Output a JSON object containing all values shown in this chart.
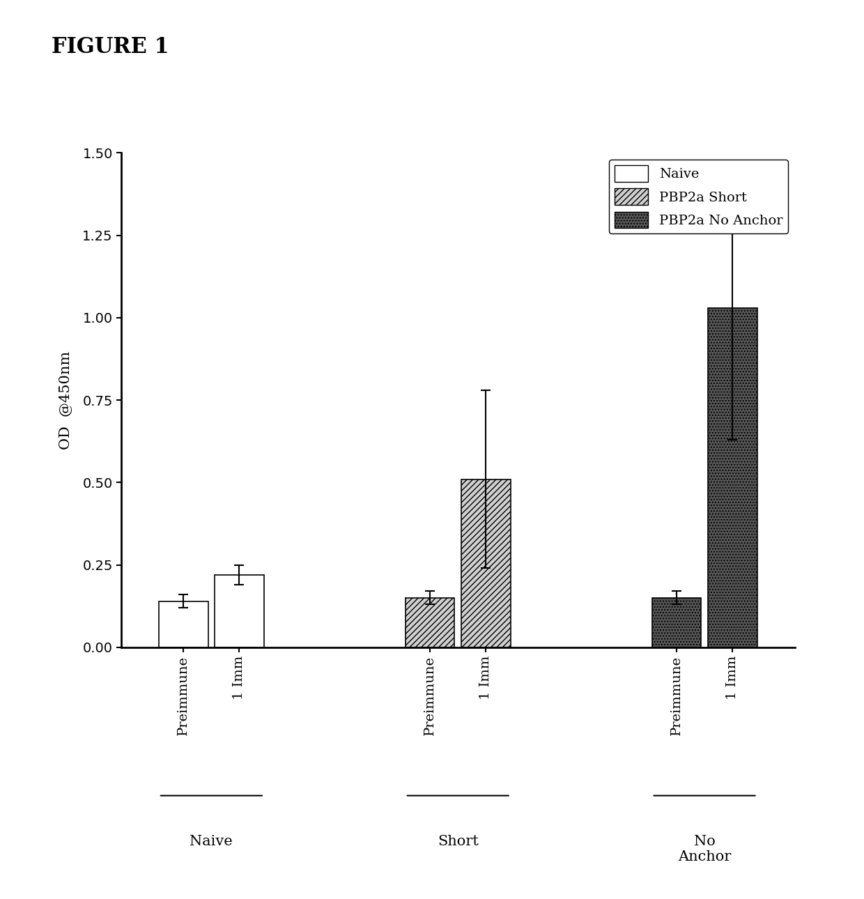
{
  "figure_title": "FIGURE 1",
  "ylabel": "OD  @450nm",
  "ylim": [
    0.0,
    1.5
  ],
  "yticks": [
    0.0,
    0.25,
    0.5,
    0.75,
    1.0,
    1.25,
    1.5
  ],
  "groups": [
    "Naive",
    "Short",
    "No\nAnchor"
  ],
  "bar_labels": [
    "Preimmune",
    "1 Imm"
  ],
  "bar_values": [
    [
      0.14,
      0.22
    ],
    [
      0.15,
      0.51
    ],
    [
      0.15,
      1.03
    ]
  ],
  "bar_errors": [
    [
      0.02,
      0.03
    ],
    [
      0.02,
      0.27
    ],
    [
      0.02,
      0.4
    ]
  ],
  "bar_colors": [
    [
      "#ffffff",
      "#ffffff"
    ],
    [
      "#d0d0d0",
      "#d0d0d0"
    ],
    [
      "#555555",
      "#555555"
    ]
  ],
  "bar_hatches": [
    [
      "",
      ""
    ],
    [
      "////",
      "////"
    ],
    [
      "....",
      "...."
    ]
  ],
  "legend_labels": [
    "Naive",
    "PBP2a Short",
    "PBP2a No Anchor"
  ],
  "legend_colors": [
    "#ffffff",
    "#d0d0d0",
    "#555555"
  ],
  "legend_hatches": [
    "",
    "////",
    "...."
  ],
  "background_color": "#ffffff",
  "bar_width": 0.3,
  "group_centers": [
    0.5,
    2.0,
    3.5
  ]
}
